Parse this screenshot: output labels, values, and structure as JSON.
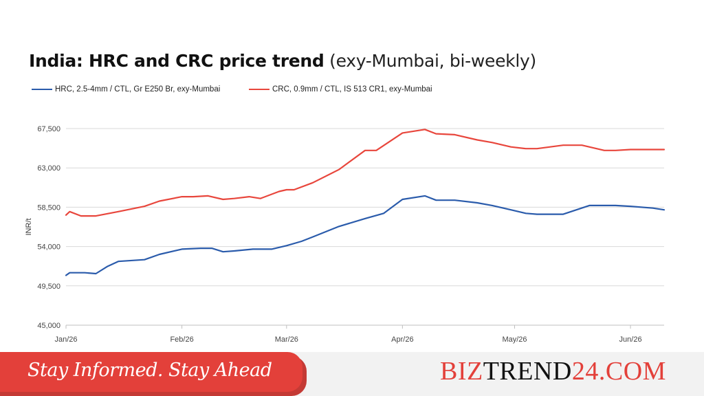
{
  "chart_data": {
    "type": "line",
    "title": "India: HRC and CRC price trend",
    "subtitle": "(exy-Mumbai, bi-weekly)",
    "ylabel": "INR/t",
    "xlabel": "",
    "ylim": [
      45000,
      67500
    ],
    "yticks": [
      "45,000",
      "49,500",
      "54,000",
      "58,500",
      "63,000",
      "67,500"
    ],
    "ytick_values": [
      45000,
      49500,
      54000,
      58500,
      63000,
      67500
    ],
    "xticks": [
      "Jan/26",
      "Feb/26",
      "Mar/26",
      "Apr/26",
      "May/26",
      "Jun/26"
    ],
    "grid": true,
    "legend_position": "top-left",
    "series": [
      {
        "name": "HRC, 2.5-4mm / CTL, Gr E250 Br, exy-Mumbai",
        "color": "#2a5bab",
        "x": [
          "2026-01-01",
          "2026-01-02",
          "2026-01-06",
          "2026-01-09",
          "2026-01-12",
          "2026-01-15",
          "2026-01-22",
          "2026-01-26",
          "2026-02-01",
          "2026-02-06",
          "2026-02-09",
          "2026-02-12",
          "2026-02-15",
          "2026-02-20",
          "2026-02-25",
          "2026-03-01",
          "2026-03-05",
          "2026-03-08",
          "2026-03-15",
          "2026-03-22",
          "2026-03-27",
          "2026-04-01",
          "2026-04-07",
          "2026-04-10",
          "2026-04-15",
          "2026-04-21",
          "2026-04-25",
          "2026-04-30",
          "2026-05-04",
          "2026-05-07",
          "2026-05-14",
          "2026-05-21",
          "2026-05-28",
          "2026-06-01",
          "2026-06-07",
          "2026-06-10"
        ],
        "values": [
          50700,
          51000,
          51000,
          50900,
          51700,
          52300,
          52500,
          53100,
          53700,
          53800,
          53800,
          53400,
          53500,
          53700,
          53700,
          54100,
          54600,
          55100,
          56300,
          57200,
          57800,
          59400,
          59800,
          59300,
          59300,
          59000,
          58700,
          58200,
          57800,
          57700,
          57700,
          58700,
          58700,
          58600,
          58400,
          58200
        ]
      },
      {
        "name": "CRC, 0.9mm / CTL, IS 513 CR1, exy-Mumbai",
        "color": "#e8463c",
        "x": [
          "2026-01-01",
          "2026-01-02",
          "2026-01-05",
          "2026-01-09",
          "2026-01-15",
          "2026-01-22",
          "2026-01-26",
          "2026-02-01",
          "2026-02-04",
          "2026-02-08",
          "2026-02-12",
          "2026-02-15",
          "2026-02-19",
          "2026-02-22",
          "2026-02-27",
          "2026-03-01",
          "2026-03-03",
          "2026-03-08",
          "2026-03-15",
          "2026-03-22",
          "2026-03-25",
          "2026-04-01",
          "2026-04-07",
          "2026-04-10",
          "2026-04-15",
          "2026-04-21",
          "2026-04-25",
          "2026-04-30",
          "2026-05-04",
          "2026-05-07",
          "2026-05-14",
          "2026-05-19",
          "2026-05-25",
          "2026-05-28",
          "2026-06-01",
          "2026-06-10"
        ],
        "values": [
          57600,
          58000,
          57500,
          57500,
          58000,
          58600,
          59200,
          59700,
          59700,
          59800,
          59400,
          59500,
          59700,
          59500,
          60300,
          60500,
          60500,
          61300,
          62800,
          65000,
          65000,
          67000,
          67400,
          66900,
          66800,
          66200,
          65900,
          65400,
          65200,
          65200,
          65600,
          65600,
          65000,
          65000,
          65100,
          65100
        ]
      }
    ]
  },
  "footer": {
    "slogan": "Stay Informed. Stay Ahead",
    "brand_part1": "BIZ",
    "brand_part2": "TREND",
    "brand_part3": "24.COM"
  }
}
